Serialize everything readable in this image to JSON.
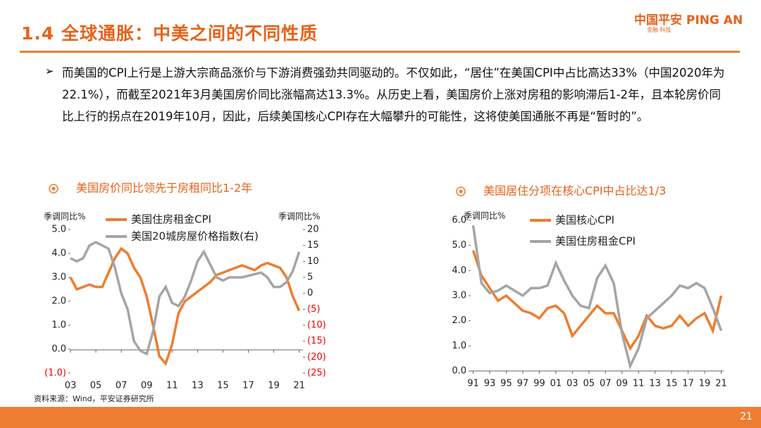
{
  "header": {
    "title": "1.4 全球通胀：中美之间的不同性质",
    "logo": "中国平安 PING AN",
    "logo_sub": "金融·科技"
  },
  "body": {
    "bullet": "➢",
    "text": "而美国的CPI上行是上游大宗商品涨价与下游消费强劲共同驱动的。不仅如此，“居住”在美国CPI中占比高达33%（中国2020年为22.1%），而截至2021年3月美国房价同比涨幅高达13.3%。从历史上看，美国房价上涨对房租的影响滞后1-2年，且本轮房价同比上行的拐点在2019年10月，因此，后续美国核心CPI存在大幅攀升的可能性，这将使美国通胀不再是“暂时的”。"
  },
  "chart_data": [
    {
      "type": "line",
      "title": "美国房价同比领先于房租同比1-2年",
      "y_label": "季调同比%",
      "y2_label": "季调同比%",
      "x": [
        2003,
        2003.5,
        2004,
        2004.5,
        2005,
        2005.5,
        2006,
        2006.5,
        2007,
        2007.5,
        2008,
        2008.5,
        2009,
        2009.5,
        2010,
        2010.5,
        2011,
        2011.5,
        2012,
        2012.5,
        2013,
        2013.5,
        2014,
        2014.5,
        2015,
        2015.5,
        2016,
        2016.5,
        2017,
        2017.5,
        2018,
        2018.5,
        2019,
        2019.5,
        2020,
        2020.5,
        2021
      ],
      "series": [
        {
          "name": "美国住房租金CPI",
          "color": "#ed7d31",
          "values": [
            3.0,
            2.5,
            2.6,
            2.7,
            2.6,
            2.6,
            3.2,
            3.8,
            4.2,
            4.0,
            3.4,
            3.0,
            2.2,
            1.0,
            -0.3,
            -0.6,
            0.2,
            1.5,
            2.0,
            2.2,
            2.4,
            2.6,
            2.8,
            3.1,
            3.2,
            3.3,
            3.4,
            3.5,
            3.4,
            3.3,
            3.5,
            3.6,
            3.5,
            3.4,
            3.0,
            2.2,
            1.6
          ]
        },
        {
          "name": "美国20城房屋价格指数(右)",
          "color": "#a5a5a5",
          "axis": "y2",
          "values": [
            11,
            10,
            11,
            15,
            16,
            15,
            14,
            8,
            0,
            -5,
            -15,
            -18,
            -19,
            -12,
            -1,
            2,
            -3,
            -4,
            -1,
            4,
            10,
            13,
            9,
            5,
            4,
            5,
            5,
            5,
            5.5,
            6,
            6.5,
            5,
            2,
            2,
            3.5,
            7,
            13
          ]
        }
      ],
      "xlim": [
        2003,
        2021.3
      ],
      "xticks": [
        {
          "value": 2003,
          "label": "03"
        },
        {
          "value": 2005,
          "label": "05"
        },
        {
          "value": 2007,
          "label": "07"
        },
        {
          "value": 2009,
          "label": "09"
        },
        {
          "value": 2011,
          "label": "11"
        },
        {
          "value": 2013,
          "label": "13"
        },
        {
          "value": 2015,
          "label": "15"
        },
        {
          "value": 2017,
          "label": "17"
        },
        {
          "value": 2019,
          "label": "19"
        },
        {
          "value": 2021,
          "label": "21"
        }
      ],
      "ylim": [
        -1,
        5
      ],
      "yticks": [
        {
          "value": 5,
          "label": "5.0"
        },
        {
          "value": 4,
          "label": "4.0"
        },
        {
          "value": 3,
          "label": "3.0"
        },
        {
          "value": 2,
          "label": "2.0"
        },
        {
          "value": 1,
          "label": "1.0"
        },
        {
          "value": 0,
          "label": "0.0"
        },
        {
          "value": -1,
          "label": "(1.0)"
        }
      ],
      "y2lim": [
        -25,
        20
      ],
      "y2ticks": [
        20,
        15,
        10,
        5,
        0,
        {
          "value": -5,
          "label": "(5)"
        },
        {
          "value": -10,
          "label": "(10)"
        },
        {
          "value": -15,
          "label": "(15)"
        },
        {
          "value": -20,
          "label": "(20)"
        },
        {
          "value": -25,
          "label": "(25)"
        }
      ]
    },
    {
      "type": "line",
      "title": "美国居住分项在核心CPI中占比达1/3",
      "y_label": "季调同比%",
      "x": [
        1991,
        1992,
        1993,
        1994,
        1995,
        1996,
        1997,
        1998,
        1999,
        2000,
        2001,
        2002,
        2003,
        2004,
        2005,
        2006,
        2007,
        2008,
        2009,
        2010,
        2011,
        2012,
        2013,
        2014,
        2015,
        2016,
        2017,
        2018,
        2019,
        2020,
        2021
      ],
      "series": [
        {
          "name": "美国核心CPI",
          "color": "#ed7d31",
          "values": [
            4.8,
            3.8,
            3.3,
            2.8,
            3.0,
            2.7,
            2.4,
            2.3,
            2.1,
            2.5,
            2.6,
            2.3,
            1.4,
            1.8,
            2.2,
            2.6,
            2.3,
            2.3,
            1.6,
            0.9,
            1.4,
            2.2,
            1.8,
            1.7,
            1.8,
            2.2,
            1.8,
            2.1,
            2.3,
            1.6,
            3.0
          ]
        },
        {
          "name": "美国住房租金CPI",
          "color": "#a5a5a5",
          "values": [
            5.8,
            3.5,
            3.1,
            3.2,
            3.4,
            3.2,
            3.0,
            3.3,
            3.3,
            3.4,
            4.3,
            3.6,
            3.0,
            2.6,
            2.5,
            3.7,
            4.2,
            3.5,
            1.5,
            0.2,
            0.9,
            2.1,
            2.4,
            2.7,
            3.0,
            3.4,
            3.3,
            3.5,
            3.3,
            2.5,
            1.6
          ]
        }
      ],
      "xlim": [
        1990.7,
        2021.3
      ],
      "xticks": [
        {
          "value": 1991,
          "label": "91"
        },
        {
          "value": 1993,
          "label": "93"
        },
        {
          "value": 1995,
          "label": "95"
        },
        {
          "value": 1997,
          "label": "97"
        },
        {
          "value": 1999,
          "label": "99"
        },
        {
          "value": 2001,
          "label": "01"
        },
        {
          "value": 2003,
          "label": "03"
        },
        {
          "value": 2005,
          "label": "05"
        },
        {
          "value": 2007,
          "label": "07"
        },
        {
          "value": 2009,
          "label": "09"
        },
        {
          "value": 2011,
          "label": "11"
        },
        {
          "value": 2013,
          "label": "13"
        },
        {
          "value": 2015,
          "label": "15"
        },
        {
          "value": 2017,
          "label": "17"
        },
        {
          "value": 2019,
          "label": "19"
        },
        {
          "value": 2021,
          "label": "21"
        }
      ],
      "ylim": [
        0,
        6
      ],
      "yticks": [
        {
          "value": 6,
          "label": "6.0"
        },
        {
          "value": 5,
          "label": "5.0"
        },
        {
          "value": 4,
          "label": "4.0"
        },
        {
          "value": 3,
          "label": "3.0"
        },
        {
          "value": 2,
          "label": "2.0"
        },
        {
          "value": 1,
          "label": "1.0"
        },
        {
          "value": 0,
          "label": "0.0"
        }
      ]
    }
  ],
  "source": "资料来源：Wind，平安证券研究所",
  "page_number": "21"
}
